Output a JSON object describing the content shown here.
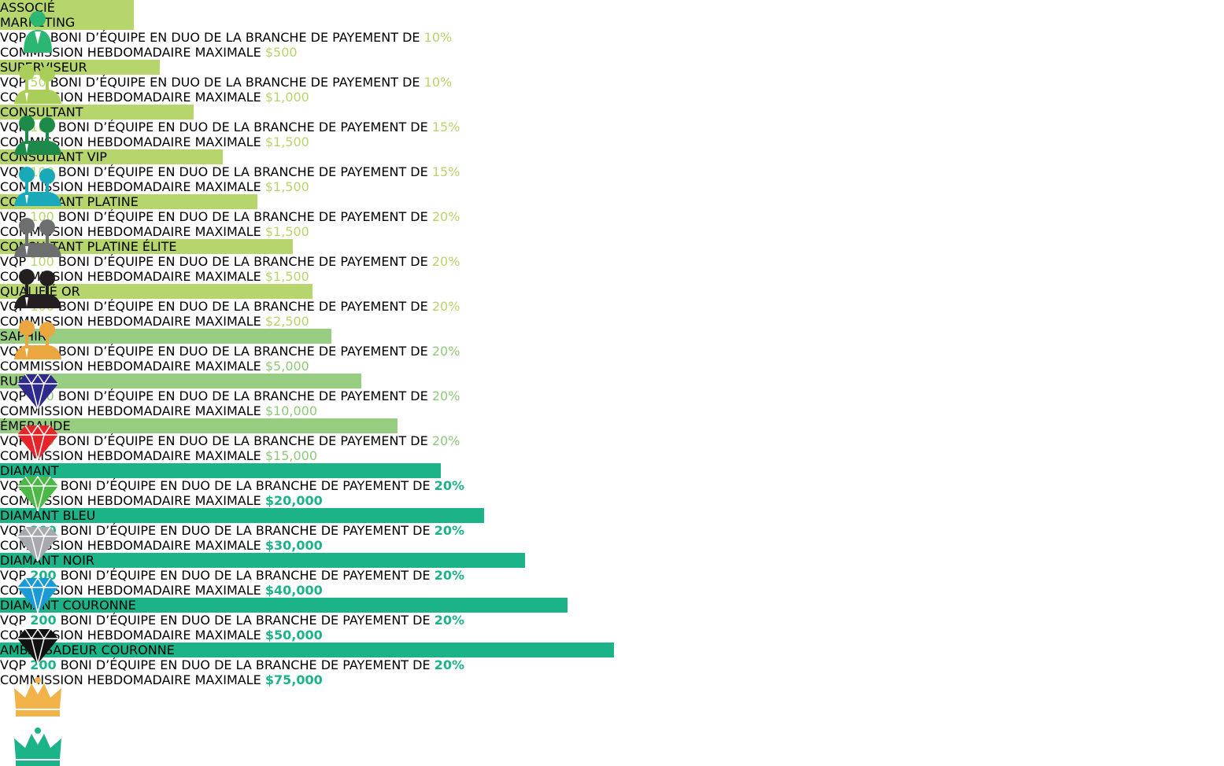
{
  "labels": {
    "vqp": "VQP",
    "boni": "BONI D’ÉQUIPE EN DUO DE LA BRANCHE DE PAYEMENT DE",
    "max": "COMMISSION HEBDOMADAIRE MAXIMALE"
  },
  "ranks": [
    {
      "name": "ASSOCIÉ MARKETING",
      "vqp": "50",
      "percent": "10%",
      "max_commission": "$500"
    },
    {
      "name": "SUPERVISEUR",
      "vqp": "50",
      "percent": "10%",
      "max_commission": "$1,000"
    },
    {
      "name": "CONSULTANT",
      "vqp": "100",
      "percent": "15%",
      "max_commission": "$1,500"
    },
    {
      "name": "CONSULTANT VIP",
      "vqp": "100",
      "percent": "15%",
      "max_commission": "$1,500"
    },
    {
      "name": "CONSULTANT PLATINE",
      "vqp": "100",
      "percent": "20%",
      "max_commission": "$1,500"
    },
    {
      "name": "CONSULTANT PLATINE ÉLITE",
      "vqp": "100",
      "percent": "20%",
      "max_commission": "$1,500"
    },
    {
      "name": "QUALIFIÉ OR",
      "vqp": "100",
      "percent": "20%",
      "max_commission": "$2,500"
    },
    {
      "name": "SAPHIR",
      "vqp": "100",
      "percent": "20%",
      "max_commission": "$5,000"
    },
    {
      "name": "RUBIS",
      "vqp": "200",
      "percent": "20%",
      "max_commission": "$10,000"
    },
    {
      "name": "ÉMERAUDE",
      "vqp": "200",
      "percent": "20%",
      "max_commission": "$15,000"
    },
    {
      "name": "DIAMANT",
      "vqp": "200",
      "percent": "20%",
      "max_commission": "$20,000"
    },
    {
      "name": "DIAMANT BLEU",
      "vqp": "200",
      "percent": "20%",
      "max_commission": "$30,000"
    },
    {
      "name": "DIAMANT NOIR",
      "vqp": "200",
      "percent": "20%",
      "max_commission": "$40,000"
    },
    {
      "name": "DIAMANT COURONNE",
      "vqp": "200",
      "percent": "20%",
      "max_commission": "$50,000"
    },
    {
      "name": "AMBASSADEUR COURONNE",
      "vqp": "200",
      "percent": "20%",
      "max_commission": "$75,000"
    }
  ]
}
